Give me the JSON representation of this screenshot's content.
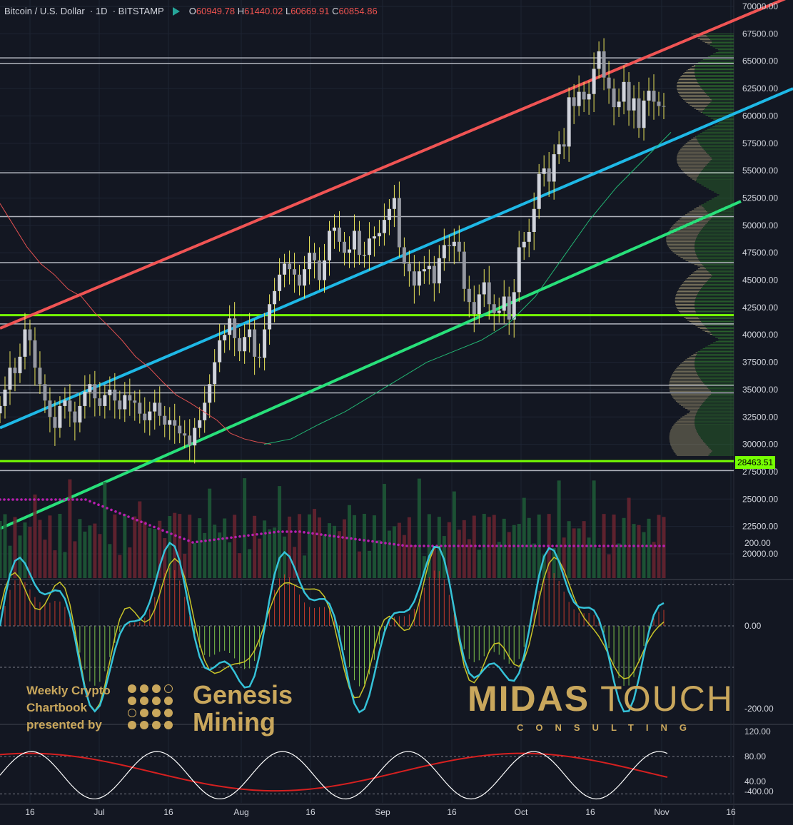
{
  "header": {
    "symbol": "Bitcoin / U.S. Dollar",
    "interval": "1D",
    "exchange": "BITSTAMP",
    "open_label": "O",
    "open": "60949.78",
    "high_label": "H",
    "high": "61440.02",
    "low_label": "L",
    "low": "60669.91",
    "close_label": "C",
    "close": "60854.86"
  },
  "last_price_badge": "28463.51",
  "branding": {
    "line1": "Weekly Crypto",
    "line2": "Chartbook",
    "line3": "presented by",
    "genesis1": "Genesis",
    "genesis2": "Mining",
    "midas1": "MIDAS",
    "midas2": "TOUCH",
    "consulting": "CONSULTING"
  },
  "colors": {
    "background": "#131722",
    "up": "#d1d4dc",
    "down": "#9598a1",
    "wick": "#e8e35a",
    "upper_channel": "#f05454",
    "mid_channel": "#1eb8e6",
    "lower_channel": "#28e07a",
    "support_green": "#76ff03",
    "ma": "#e05050",
    "ma2": "#22b573"
  },
  "chart_data": {
    "type": "candlestick",
    "price_axis": {
      "ticks": [
        "70000.00",
        "67500.00",
        "65000.00",
        "62500.00",
        "60000.00",
        "57500.00",
        "55000.00",
        "52500.00",
        "50000.00",
        "47500.00",
        "45000.00",
        "42500.00",
        "40000.00",
        "37500.00",
        "35000.00",
        "32500.00",
        "30000.00",
        "27500.00",
        "25000.00",
        "22500.00",
        "20000.00"
      ],
      "ylim": [
        17000,
        70000
      ]
    },
    "time_axis": {
      "ticks": [
        "16",
        "Jul",
        "16",
        "Aug",
        "16",
        "Sep",
        "16",
        "Oct",
        "16",
        "Nov",
        "16"
      ]
    },
    "horizontal_levels": [
      65300,
      64800,
      54800,
      50800,
      46600,
      41800,
      41000,
      35400,
      34700,
      28463,
      27600
    ],
    "green_levels": [
      41800,
      28463
    ],
    "closes": [
      33500,
      35000,
      37000,
      36500,
      38000,
      40500,
      39500,
      37000,
      35500,
      34000,
      32500,
      31500,
      33500,
      34000,
      33000,
      32000,
      33500,
      34800,
      35500,
      34200,
      33500,
      34500,
      35000,
      34000,
      33200,
      34500,
      34000,
      33800,
      32800,
      32200,
      33000,
      33800,
      32600,
      31800,
      32200,
      31700,
      31000,
      30800,
      29900,
      31500,
      32200,
      33800,
      35500,
      37500,
      39500,
      40000,
      41500,
      39700,
      38500,
      39800,
      40500,
      38000,
      37900,
      40500,
      42800,
      44000,
      45500,
      46500,
      46000,
      45500,
      44500,
      46000,
      47500,
      46800,
      45000,
      46800,
      49500,
      49800,
      48500,
      47500,
      47800,
      49500,
      47300,
      47300,
      48800,
      49000,
      49300,
      50500,
      51500,
      52500,
      48000,
      46500,
      45800,
      44500,
      45800,
      46000,
      46300,
      44700,
      47000,
      48200,
      48100,
      48500,
      47600,
      44200,
      43000,
      41900,
      43700,
      44800,
      42800,
      42000,
      42200,
      43500,
      41400,
      43900,
      48000,
      48500,
      49400,
      51500,
      54700,
      55200,
      54000,
      56500,
      57400,
      57200,
      61700,
      60900,
      62200,
      61500,
      62000,
      64300,
      65900,
      63500,
      62500,
      60800,
      61300,
      63100,
      60500,
      61600,
      58900,
      61400,
      62300,
      61300,
      60900,
      60850
    ],
    "ma_red": [
      52000,
      50000,
      48000,
      46500,
      45500,
      44200,
      43500,
      42000,
      40800,
      39500,
      38000,
      37000,
      35700,
      34500,
      33800,
      33000,
      32200,
      31000,
      30500,
      30200,
      30000
    ],
    "ma_green": [
      30000,
      30500,
      31800,
      33000,
      34500,
      36000,
      37500,
      38500,
      39500,
      41000,
      43500,
      47000,
      50500,
      53500,
      56000,
      58500
    ],
    "volume_note": "",
    "cci_axis": {
      "ticks": [
        "200.00",
        "0.00",
        "-200.00",
        "-400.00"
      ],
      "ylim": [
        -450,
        200
      ]
    },
    "stoch_axis": {
      "ticks": [
        "120.00",
        "80.00",
        "40.00"
      ],
      "ylim": [
        15,
        125
      ]
    }
  }
}
